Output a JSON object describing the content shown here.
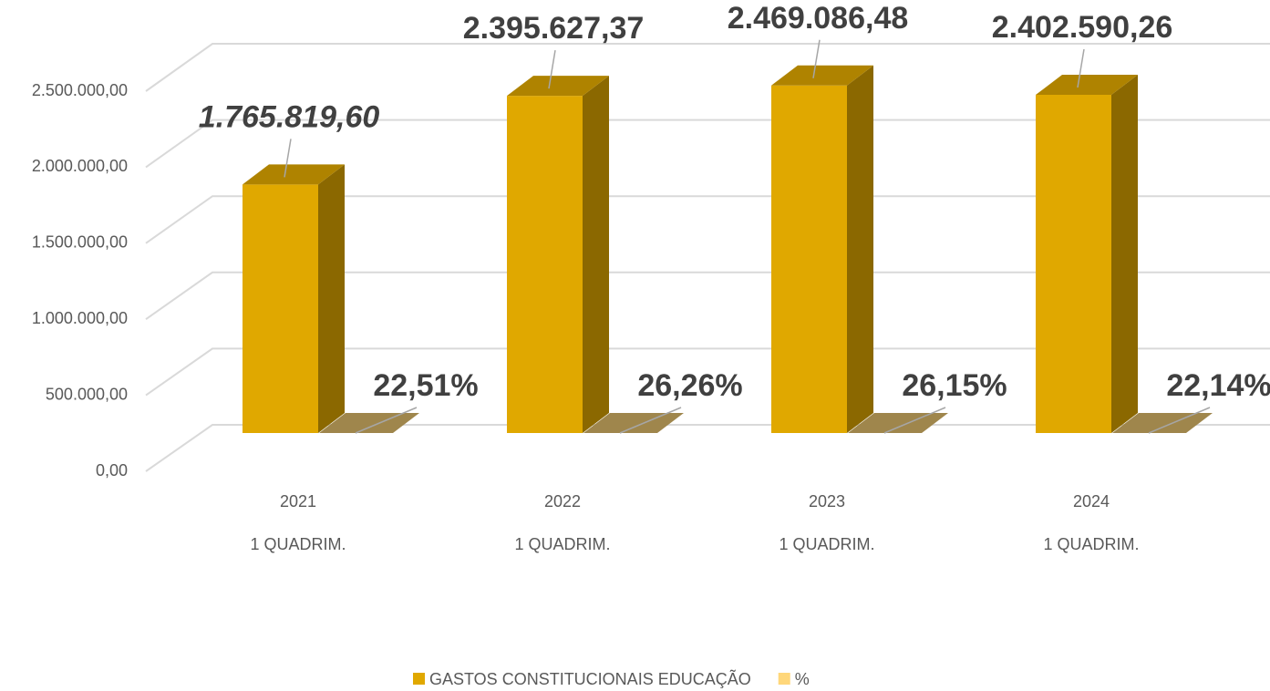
{
  "chart_data": {
    "type": "bar3d",
    "categories": [
      [
        "2021",
        "1 QUADRIM."
      ],
      [
        "2022",
        "1 QUADRIM."
      ],
      [
        "2023",
        "1 QUADRIM."
      ],
      [
        "2024",
        "1 QUADRIM."
      ]
    ],
    "series": [
      {
        "name": "GASTOS CONSTITUCIONAIS EDUCAÇÃO",
        "color": "#e0a800",
        "values": [
          1765819.6,
          2395627.37,
          2469086.48,
          2402590.26
        ],
        "value_labels": [
          "1.765.819,60",
          "2.395.627,37",
          "2.469.086,48",
          "2.402.590,26"
        ]
      },
      {
        "name": "%",
        "color": "#ffd77a",
        "values": [
          22.51,
          26.26,
          26.15,
          22.14
        ],
        "value_labels": [
          "22,51%",
          "26,26%",
          "26,15%",
          "22,14%"
        ]
      }
    ],
    "ylim": [
      0,
      2500000
    ],
    "yticks": [
      {
        "value": 0,
        "label": "0,00"
      },
      {
        "value": 500000,
        "label": "500.000,00"
      },
      {
        "value": 1000000,
        "label": "1.000.000,00"
      },
      {
        "value": 1500000,
        "label": "1.500.000,00"
      },
      {
        "value": 2000000,
        "label": "2.000.000,00"
      },
      {
        "value": 2500000,
        "label": "2.500.000,00"
      }
    ],
    "grid": true
  }
}
